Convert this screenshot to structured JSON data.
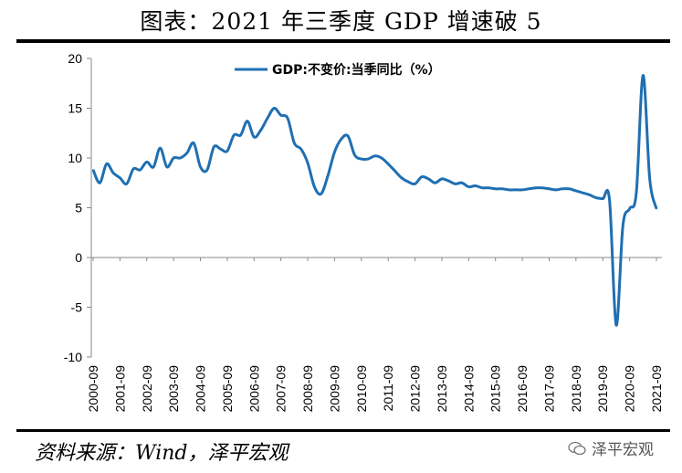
{
  "header": {
    "title": "图表：2021 年三季度 GDP 增速破 5"
  },
  "footer": {
    "source": "资料来源：Wind，泽平宏观",
    "watermark": "泽平宏观",
    "watermark_icon": "wechat-icon"
  },
  "chart_data": {
    "type": "line",
    "title": "",
    "xlabel": "",
    "ylabel": "",
    "ylim": [
      -10,
      20
    ],
    "yticks": [
      -10,
      -5,
      0,
      5,
      10,
      15,
      20
    ],
    "grid": false,
    "legend_position": "top-center",
    "x_tick_labels": [
      "2000-09",
      "2001-09",
      "2002-09",
      "2003-09",
      "2004-09",
      "2005-09",
      "2006-09",
      "2007-09",
      "2008-09",
      "2009-09",
      "2010-09",
      "2011-09",
      "2012-09",
      "2013-09",
      "2014-09",
      "2015-09",
      "2016-09",
      "2017-09",
      "2018-09",
      "2019-09",
      "2020-09",
      "2021-09"
    ],
    "series": [
      {
        "name": "GDP:不变价:当季同比（%）",
        "color": "#1f6fb2",
        "x": [
          "2000-09",
          "2000-12",
          "2001-03",
          "2001-06",
          "2001-09",
          "2001-12",
          "2002-03",
          "2002-06",
          "2002-09",
          "2002-12",
          "2003-03",
          "2003-06",
          "2003-09",
          "2003-12",
          "2004-03",
          "2004-06",
          "2004-09",
          "2004-12",
          "2005-03",
          "2005-06",
          "2005-09",
          "2005-12",
          "2006-03",
          "2006-06",
          "2006-09",
          "2006-12",
          "2007-03",
          "2007-06",
          "2007-09",
          "2007-12",
          "2008-03",
          "2008-06",
          "2008-09",
          "2008-12",
          "2009-03",
          "2009-06",
          "2009-09",
          "2009-12",
          "2010-03",
          "2010-06",
          "2010-09",
          "2010-12",
          "2011-03",
          "2011-06",
          "2011-09",
          "2011-12",
          "2012-03",
          "2012-06",
          "2012-09",
          "2012-12",
          "2013-03",
          "2013-06",
          "2013-09",
          "2013-12",
          "2014-03",
          "2014-06",
          "2014-09",
          "2014-12",
          "2015-03",
          "2015-06",
          "2015-09",
          "2015-12",
          "2016-03",
          "2016-06",
          "2016-09",
          "2016-12",
          "2017-03",
          "2017-06",
          "2017-09",
          "2017-12",
          "2018-03",
          "2018-06",
          "2018-09",
          "2018-12",
          "2019-03",
          "2019-06",
          "2019-09",
          "2019-12",
          "2020-03",
          "2020-06",
          "2020-09",
          "2020-12",
          "2021-03",
          "2021-06",
          "2021-09"
        ],
        "values": [
          8.8,
          7.5,
          9.4,
          8.5,
          8.0,
          7.4,
          8.9,
          8.8,
          9.6,
          9.1,
          11.0,
          9.1,
          10.0,
          10.0,
          10.5,
          11.5,
          9.1,
          8.8,
          11.1,
          10.9,
          10.7,
          12.3,
          12.3,
          13.7,
          12.1,
          12.8,
          14.0,
          15.0,
          14.3,
          14.0,
          11.5,
          10.9,
          9.5,
          7.1,
          6.4,
          8.2,
          10.6,
          11.9,
          12.2,
          10.3,
          9.9,
          9.9,
          10.2,
          10.0,
          9.4,
          8.7,
          8.0,
          7.6,
          7.4,
          8.1,
          7.9,
          7.5,
          7.9,
          7.7,
          7.4,
          7.5,
          7.1,
          7.2,
          7.0,
          7.0,
          6.9,
          6.9,
          6.8,
          6.8,
          6.8,
          6.9,
          7.0,
          7.0,
          6.9,
          6.8,
          6.9,
          6.9,
          6.7,
          6.5,
          6.3,
          6.0,
          5.9,
          5.8,
          -6.8,
          3.2,
          4.9,
          6.5,
          18.3,
          7.9,
          4.9
        ]
      }
    ]
  }
}
